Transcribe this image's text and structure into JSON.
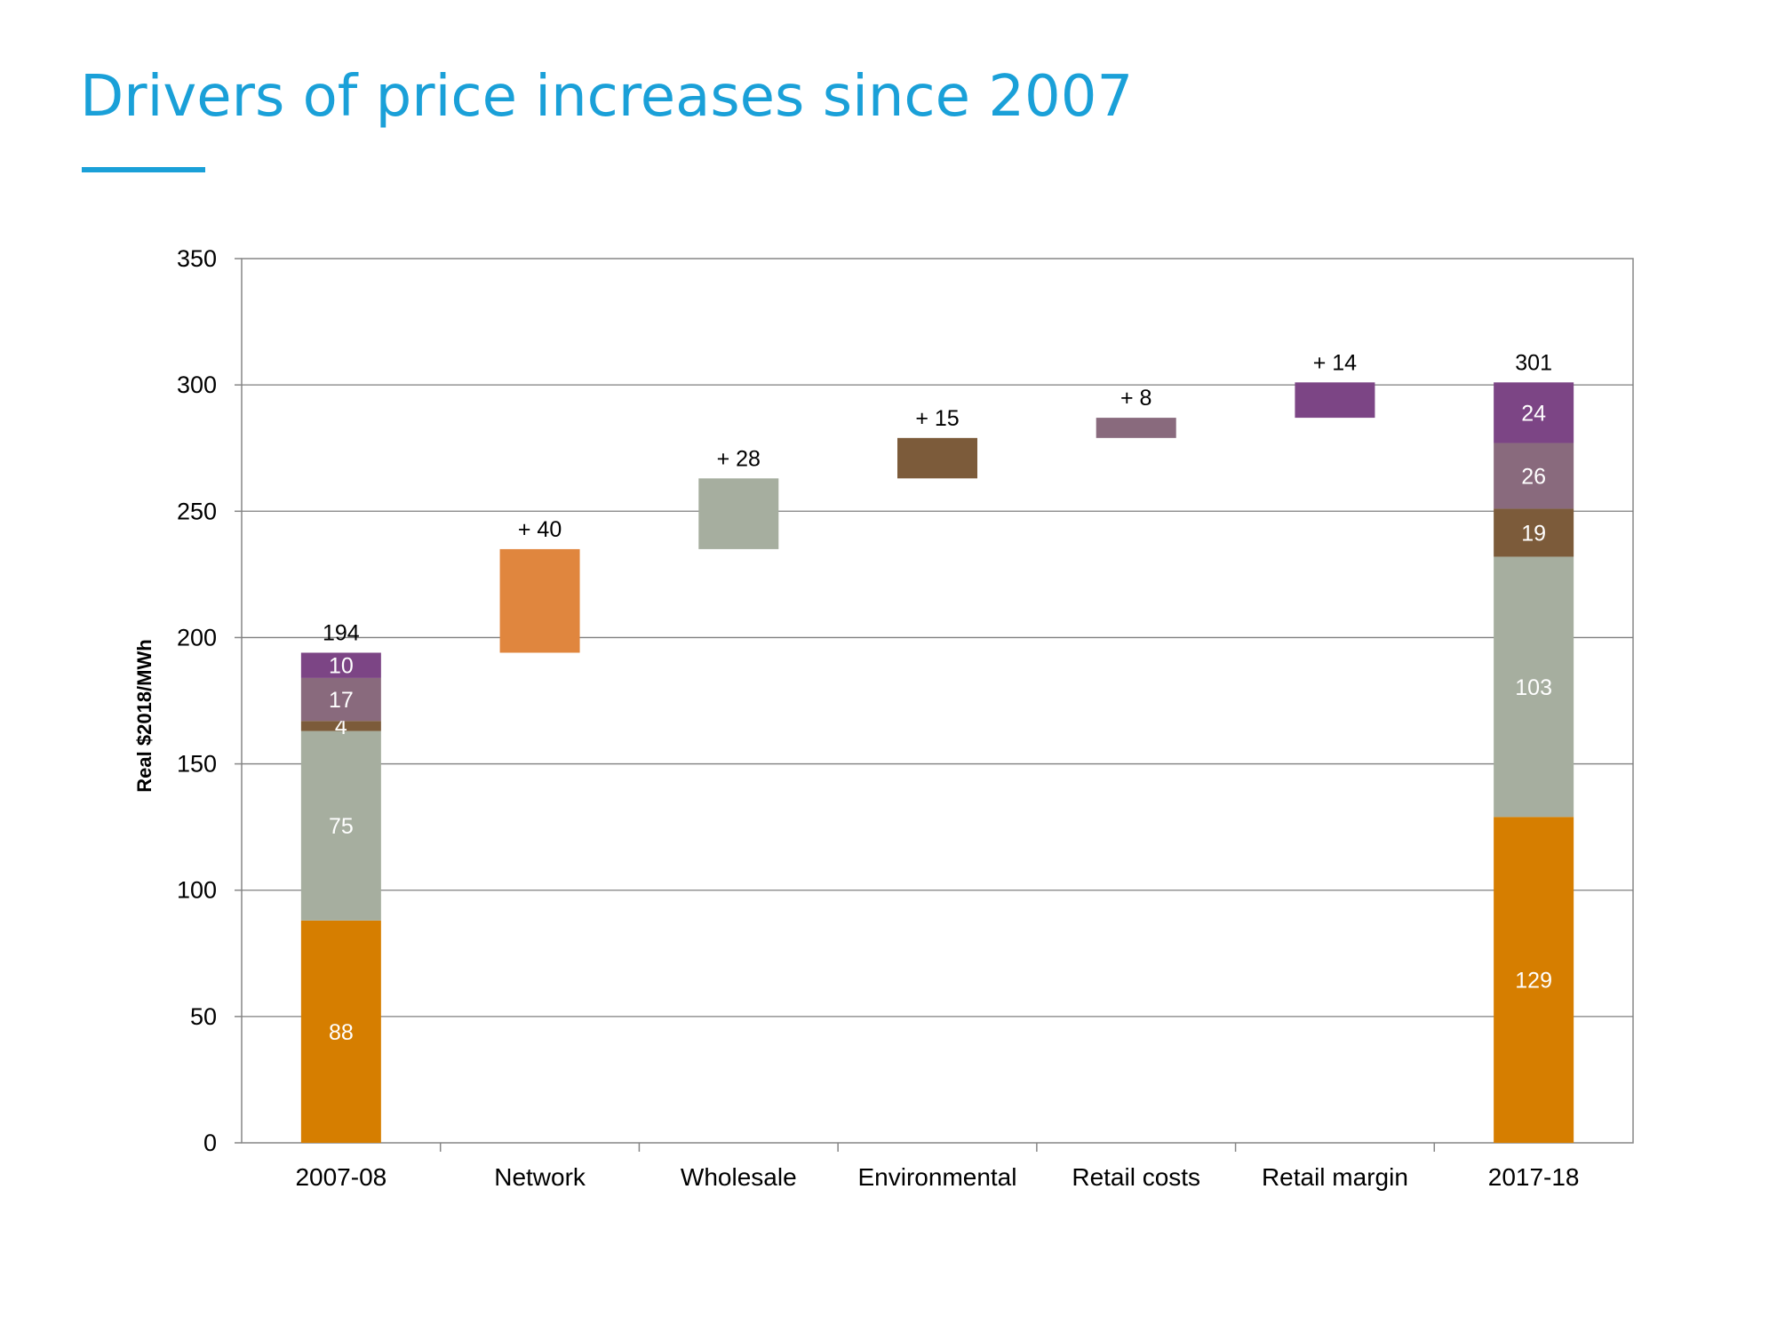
{
  "slide": {
    "title": "Drivers of price increases since 2007"
  },
  "colors": {
    "accent": "#1aa0d8",
    "network": "#d67e00",
    "network_step": "#e0863e",
    "wholesale": "#a6ae9f",
    "environmental": "#7c5b3a",
    "retail_costs": "#896a7d",
    "retail_margin": "#7c4585",
    "gridline": "#7f7f7f",
    "axis": "#868686"
  },
  "chart_data": {
    "type": "waterfall",
    "title": "Drivers of price increases since 2007",
    "xlabel": "",
    "ylabel": "Real $2018/MWh",
    "ylim": [
      0,
      350
    ],
    "yticks": [
      0,
      50,
      100,
      150,
      200,
      250,
      300,
      350
    ],
    "grid": true,
    "categories": [
      "2007-08",
      "Network",
      "Wholesale",
      "Environmental",
      "Retail costs",
      "Retail margin",
      "2017-18"
    ],
    "stack_components": [
      "Network",
      "Wholesale",
      "Environmental",
      "Retail costs",
      "Retail margin"
    ],
    "totals": [
      {
        "category": "2007-08",
        "total": 194,
        "total_label": "194",
        "segments": [
          {
            "component": "Network",
            "value": 88,
            "label": "88"
          },
          {
            "component": "Wholesale",
            "value": 75,
            "label": "75"
          },
          {
            "component": "Environmental",
            "value": 4,
            "label": "4"
          },
          {
            "component": "Retail costs",
            "value": 17,
            "label": "17"
          },
          {
            "component": "Retail margin",
            "value": 10,
            "label": "10"
          }
        ]
      },
      {
        "category": "2017-18",
        "total": 301,
        "total_label": "301",
        "segments": [
          {
            "component": "Network",
            "value": 129,
            "label": "129"
          },
          {
            "component": "Wholesale",
            "value": 103,
            "label": "103"
          },
          {
            "component": "Environmental",
            "value": 19,
            "label": "19"
          },
          {
            "component": "Retail costs",
            "value": 26,
            "label": "26"
          },
          {
            "component": "Retail margin",
            "value": 24,
            "label": "24"
          }
        ]
      }
    ],
    "steps": [
      {
        "category": "Network",
        "start": 194,
        "end": 235,
        "change": 40,
        "label": "+ 40",
        "color_key": "network_step"
      },
      {
        "category": "Wholesale",
        "start": 235,
        "end": 263,
        "change": 28,
        "label": "+ 28",
        "color_key": "wholesale"
      },
      {
        "category": "Environmental",
        "start": 263,
        "end": 279,
        "change": 15,
        "label": "+ 15",
        "color_key": "environmental"
      },
      {
        "category": "Retail costs",
        "start": 279,
        "end": 287,
        "change": 8,
        "label": "+ 8",
        "color_key": "retail_costs"
      },
      {
        "category": "Retail margin",
        "start": 287,
        "end": 301,
        "change": 14,
        "label": "+ 14",
        "color_key": "retail_margin"
      }
    ]
  }
}
